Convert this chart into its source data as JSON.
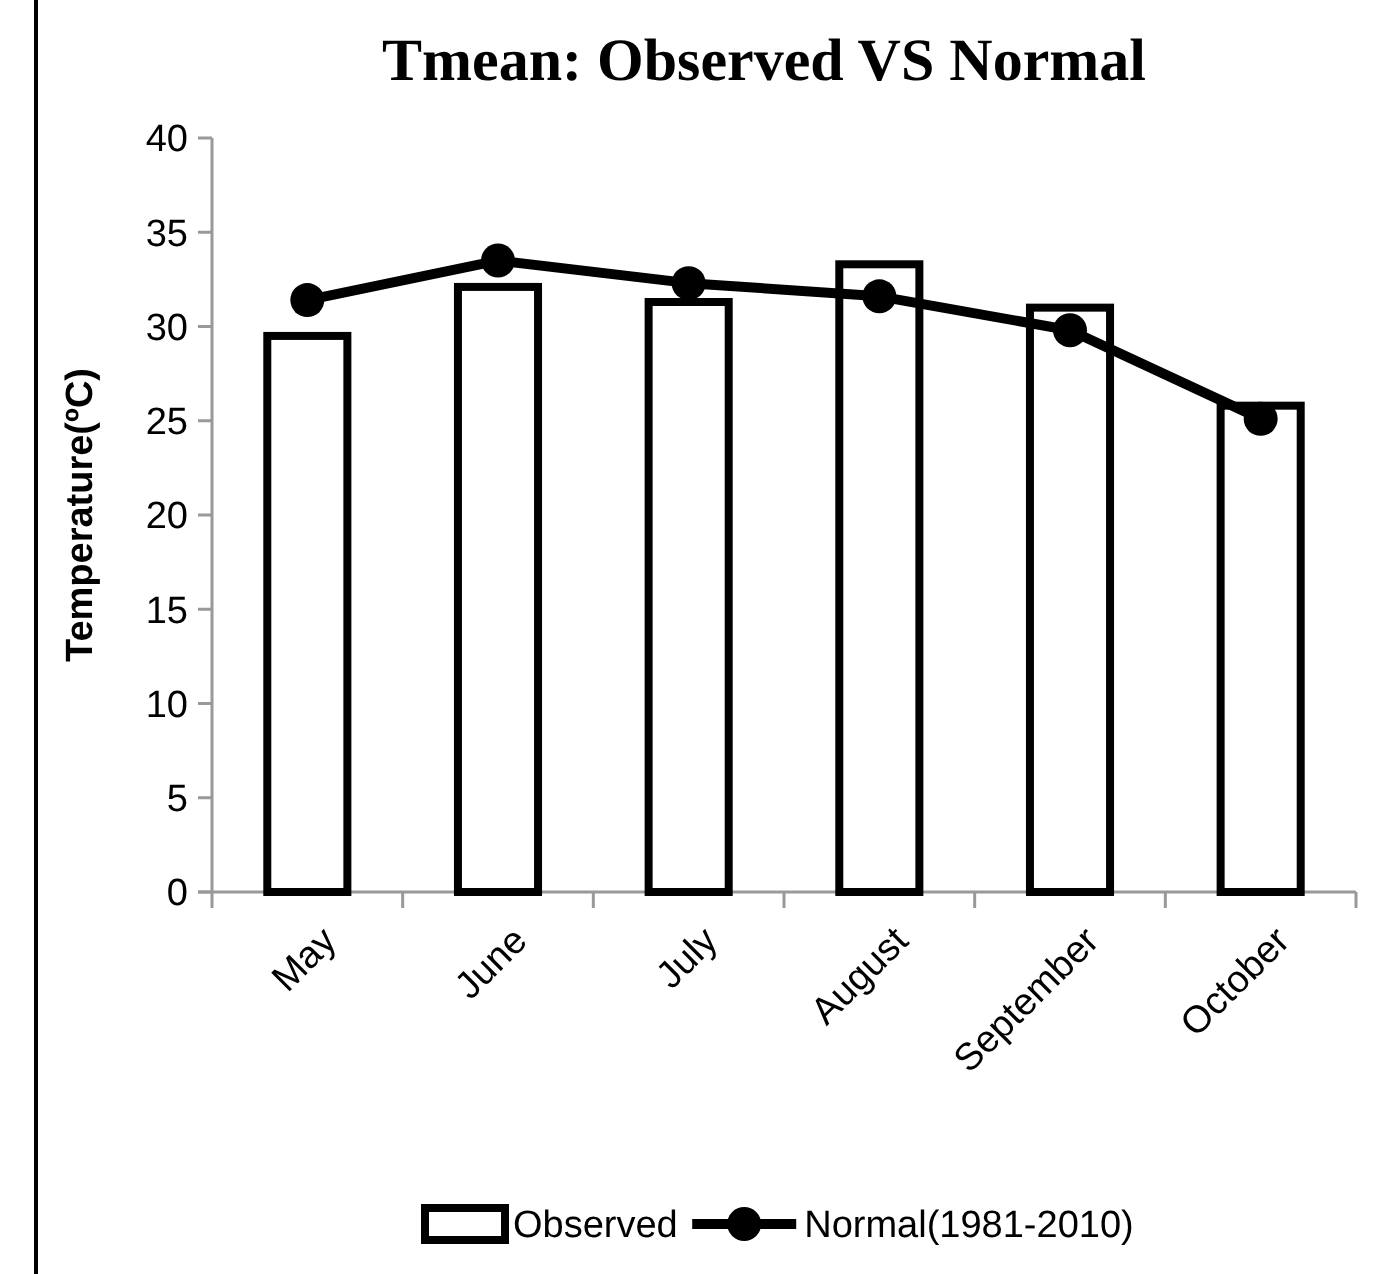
{
  "chart_data": {
    "type": "bar",
    "title": "Tmean: Observed VS Normal",
    "ylabel": "Temperature(ºC)",
    "categories": [
      "May",
      "June",
      "July",
      "August",
      "September",
      "October"
    ],
    "series": [
      {
        "name": "Observed",
        "color": "#000000",
        "values": [
          29.5,
          32.1,
          31.3,
          33.3,
          31.0,
          25.8
        ]
      },
      {
        "name": "Normal(1981-2010)",
        "type": "line",
        "color": "#000000",
        "marker": "circle",
        "values": [
          31.4,
          33.5,
          32.3,
          31.6,
          29.8,
          25.1
        ]
      }
    ],
    "ylim": [
      0,
      40
    ],
    "yticks": [
      0,
      5,
      10,
      15,
      20,
      25,
      30,
      35,
      40
    ],
    "grid": false,
    "legend": "bottom"
  }
}
